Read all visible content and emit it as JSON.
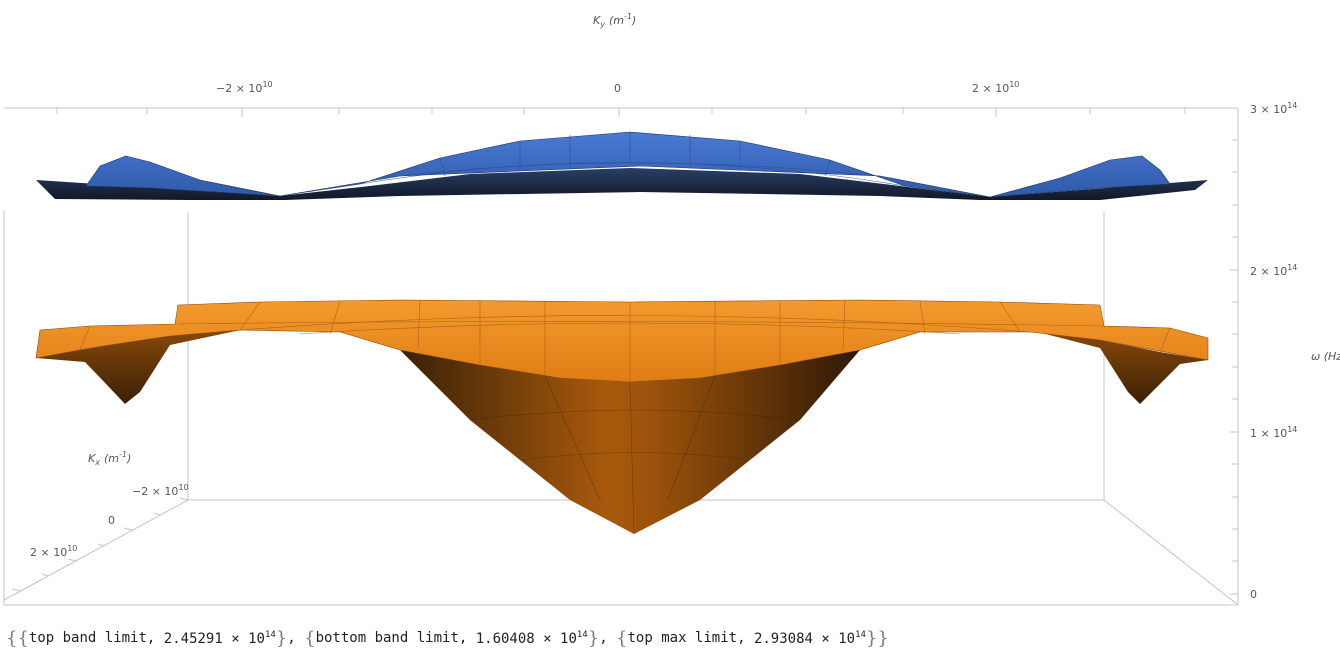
{
  "chart_data": {
    "type": "surface3d",
    "axes": {
      "ky": {
        "label_main": "K",
        "label_sub": "y",
        "label_unit": "(m",
        "label_exp": "-1",
        "label_close": ")",
        "ticks": [
          {
            "m": "−2 × 10",
            "e": "10",
            "value": -20000000000.0
          },
          {
            "m": "0",
            "e": "",
            "value": 0
          },
          {
            "m": "2 × 10",
            "e": "10",
            "value": 20000000000.0
          }
        ]
      },
      "kx": {
        "label_main": "K",
        "label_sub": "x",
        "label_unit": "(m",
        "label_exp": "-1",
        "label_close": ")",
        "ticks": [
          {
            "m": "−2 × 10",
            "e": "10",
            "value": -20000000000.0
          },
          {
            "m": "0",
            "e": "",
            "value": 0
          },
          {
            "m": "2 × 10",
            "e": "10",
            "value": 20000000000.0
          }
        ]
      },
      "omega": {
        "label": "ω (Hz",
        "ticks": [
          {
            "m": "3 × 10",
            "e": "14",
            "value": 300000000000000.0
          },
          {
            "m": "2 × 10",
            "e": "14",
            "value": 200000000000000.0
          },
          {
            "m": "1 × 10",
            "e": "14",
            "value": 100000000000000.0
          },
          {
            "m": "0",
            "e": "",
            "value": 0
          }
        ],
        "range": [
          0,
          300000000000000.0
        ]
      }
    },
    "series": [
      {
        "band": "top",
        "color": "#3d6bc4",
        "profile_ky": [
          -40000000000.0,
          -33000000000.0,
          -26000000000.0,
          -18000000000.0,
          -10000000000.0,
          0,
          10000000000.0,
          18000000000.0,
          26000000000.0,
          33000000000.0,
          40000000000.0
        ],
        "profile_omega": [
          255000000000000.0,
          275000000000000.0,
          250000000000000.0,
          253000000000000.0,
          275000000000000.0,
          293000000000000.0,
          275000000000000.0,
          253000000000000.0,
          250000000000000.0,
          275000000000000.0,
          255000000000000.0
        ]
      },
      {
        "band": "bottom",
        "color": "#f28c1f",
        "profile_ky": [
          -40000000000.0,
          -34000000000.0,
          -25000000000.0,
          -10000000000.0,
          0,
          10000000000.0,
          25000000000.0,
          34000000000.0,
          40000000000.0
        ],
        "profile_omega": [
          145000000000000.0,
          120000000000000.0,
          160000000000000.0,
          155000000000000.0,
          38000000000000.0,
          155000000000000.0,
          160000000000000.0,
          120000000000000.0,
          145000000000000.0
        ]
      }
    ]
  },
  "output": {
    "items": [
      {
        "label": "top band limit",
        "mantissa": "2.45291",
        "base": "10",
        "exp": "14"
      },
      {
        "label": "bottom band limit",
        "mantissa": "1.60408",
        "base": "10",
        "exp": "14"
      },
      {
        "label": "top max limit",
        "mantissa": "2.93084",
        "base": "10",
        "exp": "14"
      }
    ]
  },
  "colors": {
    "top_surface": "#3d6bc4",
    "top_surface_dark": "#1c2a4a",
    "bottom_surface": "#f28c1f",
    "bottom_surface_dark": "#4a2a08",
    "box_edges": "#bbbbbb"
  }
}
